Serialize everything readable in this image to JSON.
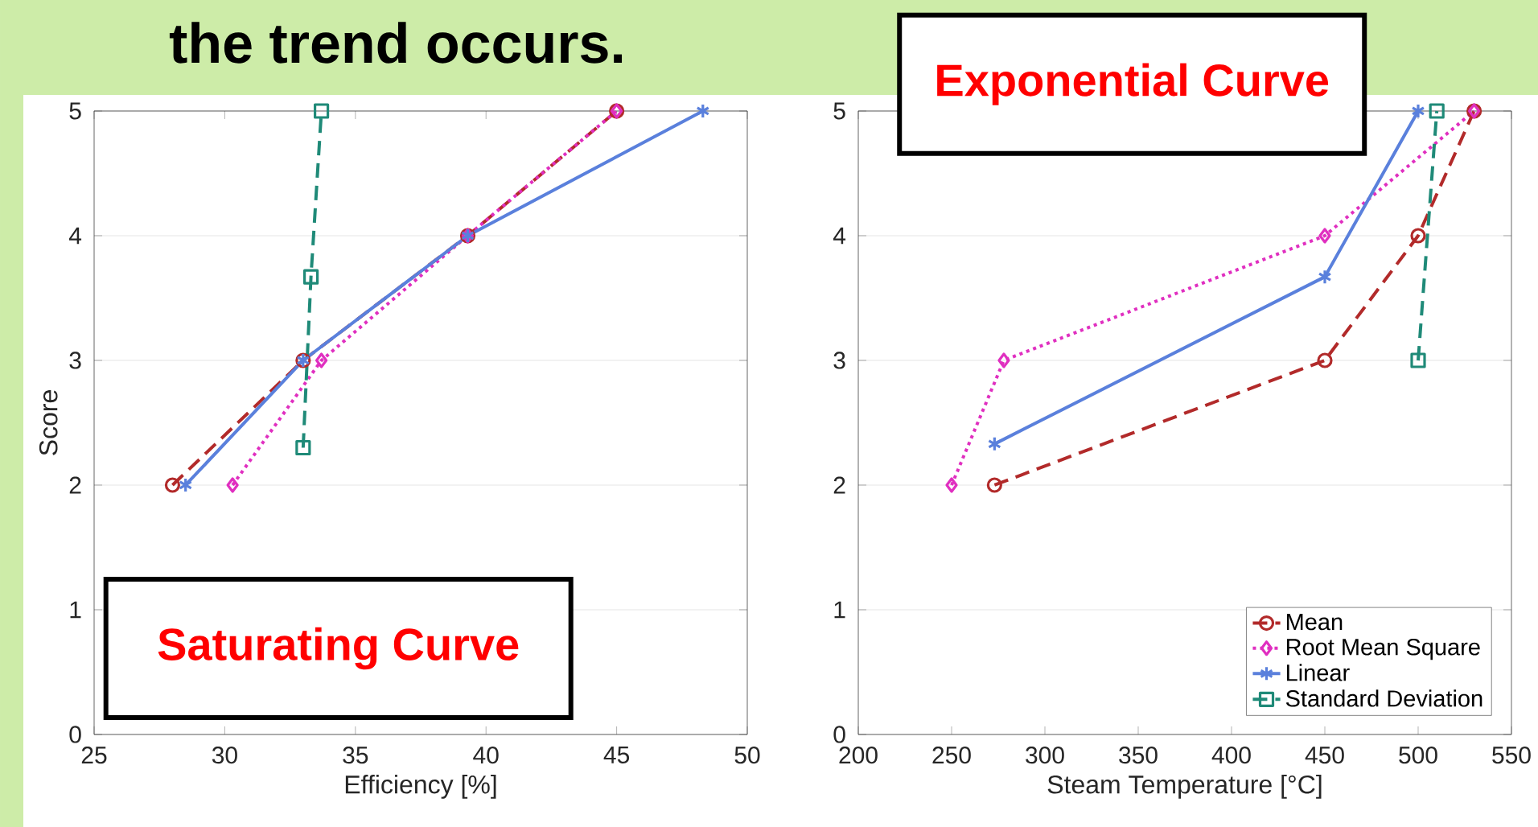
{
  "chart_data": [
    {
      "type": "line",
      "title": "the trend occurs.",
      "xlabel": "Efficiency [%]",
      "ylabel": "Score",
      "annotations": [
        "Saturating Curve"
      ],
      "xlim": [
        25,
        50
      ],
      "xticks": [
        25,
        30,
        35,
        40,
        45,
        50
      ],
      "ylim": [
        0,
        5
      ],
      "yticks": [
        0,
        1,
        2,
        3,
        4,
        5
      ],
      "grid": "y",
      "legend": false,
      "series": [
        {
          "color": "#b22a2a",
          "marker": "circle",
          "line_style": "dashed",
          "x": [
            28,
            33,
            39.3,
            45
          ],
          "values": [
            2,
            3,
            4,
            5
          ]
        },
        {
          "color": "#e02fc0",
          "marker": "diamond",
          "line_style": "dotted",
          "x": [
            30.3,
            33.7,
            39.3,
            45
          ],
          "values": [
            2,
            3,
            4,
            5
          ]
        },
        {
          "color": "#5a80dc",
          "marker": "cross",
          "line_style": "solid",
          "x": [
            28.5,
            33,
            39.3,
            48.3
          ],
          "values": [
            2,
            3,
            4,
            5
          ]
        },
        {
          "color": "#1f8a78",
          "marker": "square",
          "line_style": "dashed",
          "x": [
            33,
            33.3,
            33.7
          ],
          "values": [
            2.3,
            3.67,
            5
          ]
        }
      ]
    },
    {
      "type": "line",
      "xlabel": "Steam Temperature [°C]",
      "annotations": [
        "Exponential Curve"
      ],
      "xlim": [
        200,
        550
      ],
      "xticks": [
        200,
        250,
        300,
        350,
        400,
        450,
        500,
        550
      ],
      "ylim": [
        0,
        5
      ],
      "yticks": [
        0,
        1,
        2,
        3,
        4,
        5
      ],
      "grid": "y",
      "legend": "bottom right",
      "series": [
        {
          "name": "Mean",
          "color": "#b22a2a",
          "marker": "circle",
          "line_style": "dashed",
          "x": [
            273,
            450,
            500,
            530
          ],
          "values": [
            2,
            3,
            4,
            5
          ]
        },
        {
          "name": "Root Mean Square",
          "color": "#e02fc0",
          "marker": "diamond",
          "line_style": "dotted",
          "x": [
            250,
            278,
            450,
            530
          ],
          "values": [
            2,
            3,
            4,
            5
          ]
        },
        {
          "name": "Linear",
          "color": "#5a80dc",
          "marker": "cross",
          "line_style": "solid",
          "x": [
            273,
            450,
            500
          ],
          "values": [
            2.33,
            3.67,
            5
          ]
        },
        {
          "name": "Standard Deviation",
          "color": "#1f8a78",
          "marker": "square",
          "line_style": "dashed",
          "x": [
            500,
            510
          ],
          "values": [
            3,
            5
          ]
        }
      ]
    }
  ]
}
